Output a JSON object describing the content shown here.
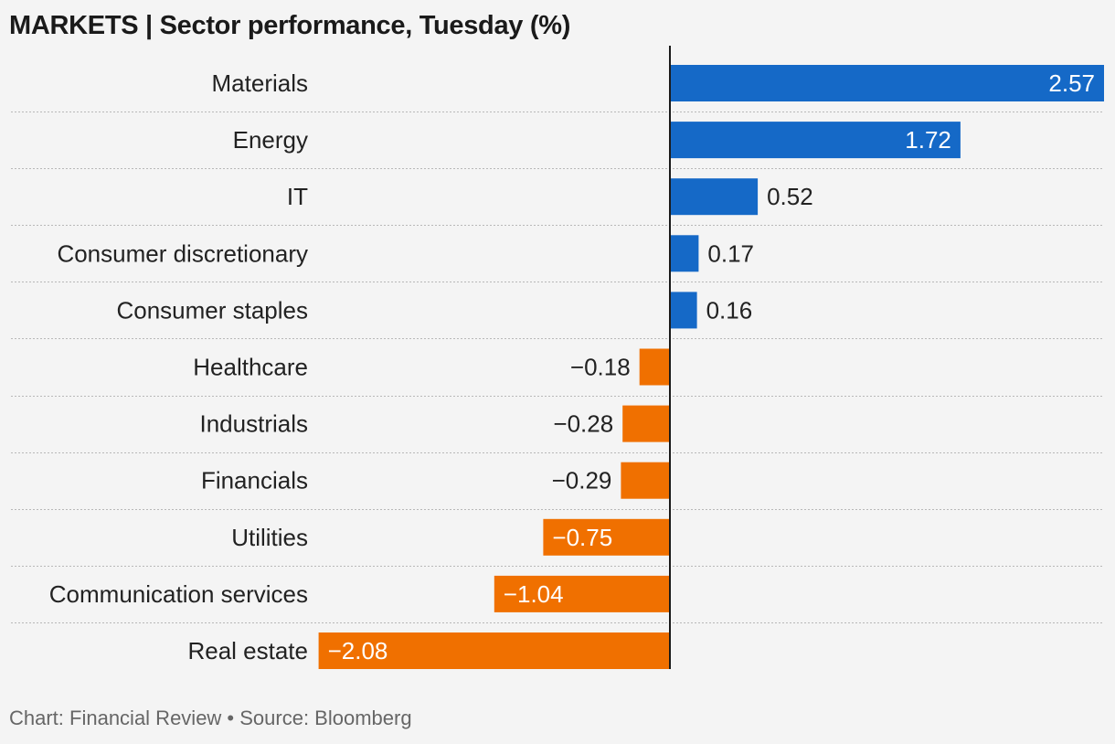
{
  "title": "MARKETS | Sector performance, Tuesday (%)",
  "source": "Chart: Financial Review • Source: Bloomberg",
  "colors": {
    "positive": "#1569c7",
    "negative": "#f07000",
    "positive_label_outside": "#222222",
    "negative_label_outside": "#222222",
    "label_inside": "#ffffff"
  },
  "chart_data": {
    "type": "bar",
    "orientation": "horizontal",
    "title": "MARKETS | Sector performance, Tuesday (%)",
    "xlabel": "",
    "ylabel": "",
    "xlim": [
      -2.08,
      2.57
    ],
    "grid": true,
    "categories": [
      "Materials",
      "Energy",
      "IT",
      "Consumer discretionary",
      "Consumer staples",
      "Healthcare",
      "Industrials",
      "Financials",
      "Utilities",
      "Communication services",
      "Real estate"
    ],
    "values": [
      2.57,
      1.72,
      0.52,
      0.17,
      0.16,
      -0.18,
      -0.28,
      -0.29,
      -0.75,
      -1.04,
      -2.08
    ],
    "value_labels": [
      "2.57",
      "1.72",
      "0.52",
      "0.17",
      "0.16",
      "−0.18",
      "−0.28",
      "−0.29",
      "−0.75",
      "−1.04",
      "−2.08"
    ]
  }
}
